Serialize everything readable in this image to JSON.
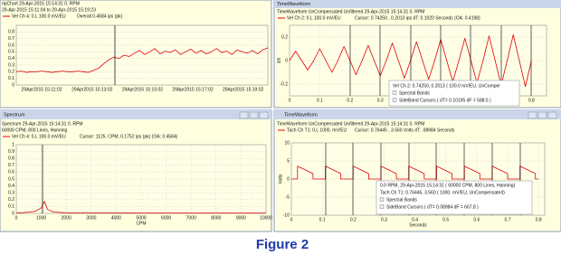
{
  "chart_data": [
    {
      "type": "line",
      "header": [
        "ripChart  29-Apr-2015 15:14:31   0. RPM",
        "29-Apr-2015 15:11:04 to 29-Apr-2015 15:19:23"
      ],
      "readout": "Overall  0.4584 ips (pk)",
      "series": [
        {
          "name": "Vel Ch 4:  0.L   100.0 mV/EU",
          "color": "#e00000",
          "values": [
            0.2,
            0.21,
            0.19,
            0.2,
            0.2,
            0.21,
            0.2,
            0.19,
            0.2,
            0.21,
            0.2,
            0.2,
            0.21,
            0.2,
            0.19,
            0.22,
            0.25,
            0.32,
            0.38,
            0.42,
            0.4,
            0.45,
            0.43,
            0.48,
            0.52,
            0.46,
            0.5,
            0.55,
            0.47,
            0.51,
            0.49,
            0.53,
            0.46,
            0.5,
            0.54,
            0.48,
            0.52,
            0.47,
            0.5,
            0.55,
            0.49,
            0.51,
            0.46,
            0.53,
            0.5,
            0.48,
            0.52,
            0.47,
            0.53,
            0.56
          ]
        }
      ],
      "x_labels": [
        "29Apr2015 15:11:02",
        "29Apr2015 15:13:02",
        "29Apr2015 15:15:02",
        "29Apr2015 15:17:02",
        "29Apr2015 15:19:02"
      ],
      "ylim": [
        0,
        0.9
      ],
      "yticks": [
        0,
        0.1,
        0.2,
        0.3,
        0.4,
        0.5,
        0.6,
        0.7,
        0.8
      ],
      "grid": true
    },
    {
      "type": "line",
      "window_title": "TimeWaveform",
      "header": [
        "TimeWaveform   UnCompensated    Unfiltered    29-Apr-2015 15:14:31    0. RPM"
      ],
      "readout": "Cursor: 0.74250 , 0.2013 ips   dT: 0.1020  Seconds  (OA: 0.4198)",
      "inset": [
        "Vel Ch 2:  0.74250, 0.2013   ( 100.0 mV/EU, UnComper",
        "Spectral Bands",
        "SideBand Cursors  ( dT= 0.10195  dF = 588.5 )"
      ],
      "ylabel": "ips",
      "x": [
        0,
        0.02,
        0.04,
        0.06,
        0.08,
        0.1,
        0.12,
        0.14,
        0.16,
        0.18,
        0.2,
        0.22,
        0.24,
        0.26,
        0.28,
        0.3,
        0.32,
        0.34,
        0.36,
        0.38,
        0.4,
        0.42,
        0.44,
        0.46,
        0.48,
        0.5,
        0.52,
        0.54,
        0.56,
        0.58,
        0.6,
        0.62,
        0.64,
        0.66,
        0.68,
        0.7,
        0.72,
        0.74,
        0.76,
        0.78,
        0.8
      ],
      "series": [
        {
          "name": "Vel Ch 2:  0.L   100.0 mV/EU",
          "color": "#e00000",
          "values": [
            0,
            0.08,
            0,
            -0.08,
            0,
            0.1,
            0,
            -0.1,
            0,
            0.12,
            0,
            -0.12,
            0,
            0.13,
            0,
            -0.13,
            0,
            0.15,
            0,
            -0.15,
            0,
            0.16,
            0,
            -0.16,
            0,
            0.18,
            0,
            -0.18,
            0,
            0.19,
            0,
            -0.19,
            0,
            0.21,
            0,
            -0.21,
            0,
            0.22,
            0,
            -0.22,
            0
          ]
        }
      ],
      "xlim": [
        0,
        0.85
      ],
      "xticks": [
        0,
        0.1,
        0.2,
        0.3,
        0.4,
        0.5,
        0.6,
        0.7,
        0.8
      ],
      "ylim": [
        -0.3,
        0.3
      ],
      "yticks": [
        -0.2,
        0,
        0.2
      ],
      "grid": true
    },
    {
      "type": "line",
      "window_title": "Spectrum",
      "header": [
        "Spectrum   29-Apr-2015 15:14:31   0. RPM",
        "60000 CPM, 800 Lines, Hanning"
      ],
      "readout": "Cursor: 1125.  CPM, 0.1752 ips (pk)   (OA: 0.4584)",
      "xlabel": "CPM",
      "x": [
        0,
        250,
        500,
        750,
        1000,
        1125,
        1250,
        1500,
        2000,
        3000,
        4000,
        5000,
        6000,
        7000,
        8000,
        9000,
        10000
      ],
      "series": [
        {
          "name": "Vel Ch 4:  0.L   100.0 mV/EU",
          "color": "#e00000",
          "values": [
            0.01,
            0.01,
            0.02,
            0.03,
            0.08,
            0.175,
            0.06,
            0.02,
            0.01,
            0.01,
            0.01,
            0.005,
            0.005,
            0.005,
            0.005,
            0.005,
            0.005
          ]
        }
      ],
      "xlim": [
        0,
        10000
      ],
      "xticks": [
        0,
        1000,
        2000,
        3000,
        4000,
        5000,
        6000,
        7000,
        8000,
        9000,
        10000
      ],
      "ylim": [
        0,
        1
      ],
      "yticks": [
        0,
        0.1,
        0.2,
        0.3,
        0.4,
        0.5,
        0.6,
        0.7,
        0.8,
        0.9,
        1
      ],
      "grid": true
    },
    {
      "type": "line",
      "window_title": "TimeWaveform",
      "header": [
        "TimeWaveform   UnCompensated    Unfiltered    29-Apr-2015 15:14:31    0. RPM"
      ],
      "readout": "Cursor: 0.76445 , 3.560 Volts    dT: .08984  Seconds",
      "inset": [
        "0.0 RPM, 29-Apr-2015 15:14:31   ( 60000 CPM, 800 Lines, Hanning)",
        "Tach Ch T1:  0.76445, 3.560   ( 1000. mV/EU, UnCompensated)",
        "Spectral Bands",
        "SideBand Cursors  ( dT= 0.08984  dF = 667.8 )"
      ],
      "xlabel": "Seconds",
      "ylabel": "Volts",
      "x": [
        0,
        0.02,
        0.02,
        0.07,
        0.07,
        0.11,
        0.11,
        0.16,
        0.16,
        0.2,
        0.2,
        0.25,
        0.25,
        0.29,
        0.29,
        0.34,
        0.34,
        0.38,
        0.38,
        0.43,
        0.43,
        0.47,
        0.47,
        0.52,
        0.52,
        0.56,
        0.56,
        0.61,
        0.61,
        0.65,
        0.65,
        0.7,
        0.7,
        0.74,
        0.74,
        0.79,
        0.79,
        0.8
      ],
      "series": [
        {
          "name": "Tach Ch T1:  0.L   1000. mV/EU",
          "color": "#e00000",
          "values": [
            0,
            0,
            3.56,
            1.5,
            0,
            0,
            3.56,
            1.5,
            0,
            0,
            3.56,
            1.5,
            0,
            0,
            3.56,
            1.5,
            0,
            0,
            3.56,
            1.5,
            0,
            0,
            3.56,
            1.5,
            0,
            0,
            3.56,
            1.5,
            0,
            0,
            3.56,
            1.5,
            0,
            0,
            3.56,
            1.5,
            0,
            0
          ]
        }
      ],
      "xlim": [
        0,
        0.82
      ],
      "xticks": [
        0,
        0.1,
        0.2,
        0.3,
        0.4,
        0.5,
        0.6,
        0.7,
        0.8
      ],
      "ylim": [
        -10,
        10
      ],
      "yticks": [
        -10,
        -5,
        0,
        5,
        10
      ],
      "grid": true
    }
  ],
  "caption": "Figure 2"
}
